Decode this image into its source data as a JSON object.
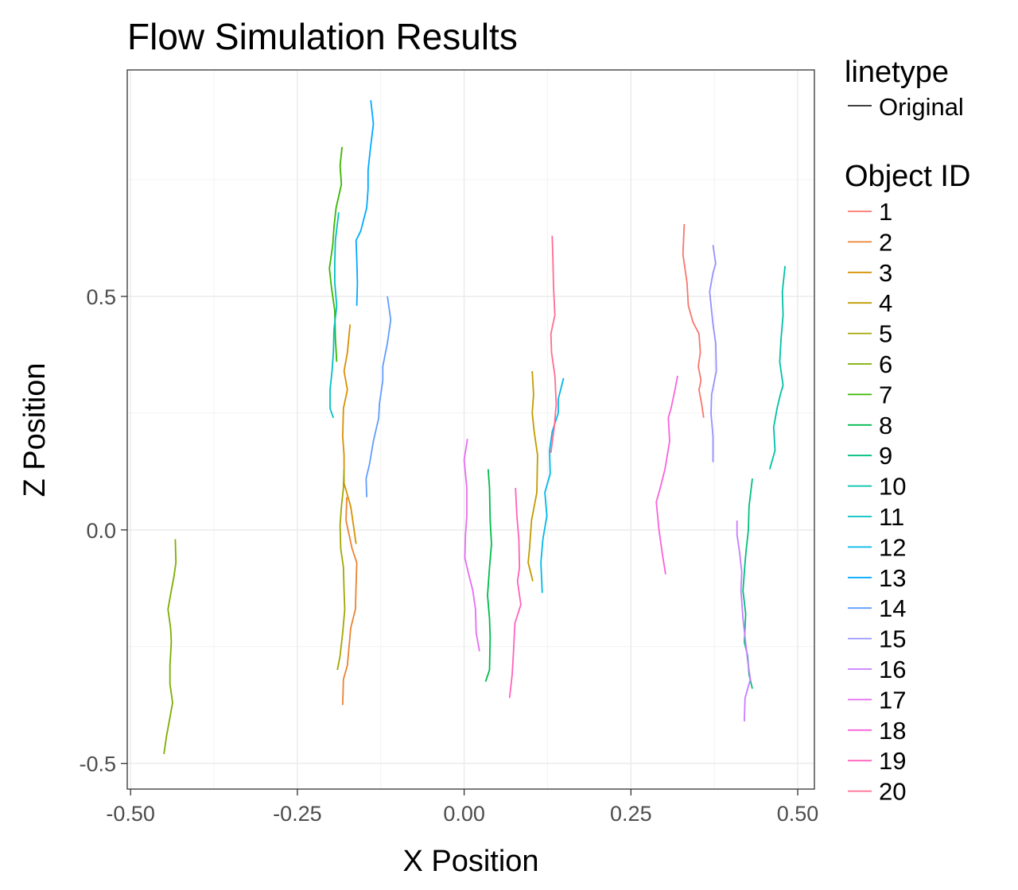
{
  "chart_data": {
    "type": "line",
    "title": "Flow Simulation Results",
    "xlabel": "X Position",
    "ylabel": "Z Position",
    "xlim": [
      -0.505,
      0.525
    ],
    "ylim": [
      -0.555,
      0.985
    ],
    "x_ticks": [
      -0.5,
      -0.25,
      0.0,
      0.25,
      0.5
    ],
    "x_tick_labels": [
      "-0.50",
      "-0.25",
      "0.00",
      "0.25",
      "0.50"
    ],
    "y_ticks": [
      -0.5,
      0.0,
      0.5
    ],
    "y_tick_labels": [
      "-0.5",
      "0.0",
      "0.5"
    ],
    "grid": true,
    "legend": {
      "placement": "right",
      "linetype_title": "linetype",
      "linetype_entries": [
        "Original"
      ],
      "color_title": "Object ID"
    },
    "series": [
      {
        "name": "1",
        "color": "#F8766D",
        "points": [
          [
            0.33,
            0.655
          ],
          [
            0.328,
            0.59
          ],
          [
            0.334,
            0.53
          ],
          [
            0.336,
            0.48
          ],
          [
            0.343,
            0.445
          ],
          [
            0.352,
            0.42
          ],
          [
            0.354,
            0.38
          ],
          [
            0.351,
            0.35
          ],
          [
            0.355,
            0.32
          ],
          [
            0.352,
            0.3
          ],
          [
            0.356,
            0.27
          ],
          [
            0.359,
            0.24
          ]
        ]
      },
      {
        "name": "2",
        "color": "#EA8331",
        "points": [
          [
            -0.182,
            -0.375
          ],
          [
            -0.181,
            -0.32
          ],
          [
            -0.175,
            -0.29
          ],
          [
            -0.17,
            -0.21
          ],
          [
            -0.163,
            -0.17
          ],
          [
            -0.162,
            -0.12
          ],
          [
            -0.161,
            -0.07
          ],
          [
            -0.168,
            -0.04
          ],
          [
            -0.177,
            0.02
          ],
          [
            -0.176,
            0.07
          ]
        ]
      },
      {
        "name": "3",
        "color": "#D89000",
        "points": [
          [
            -0.162,
            -0.03
          ],
          [
            -0.166,
            0.01
          ],
          [
            -0.17,
            0.05
          ],
          [
            -0.18,
            0.1
          ],
          [
            -0.18,
            0.16
          ],
          [
            -0.182,
            0.2
          ],
          [
            -0.181,
            0.26
          ],
          [
            -0.175,
            0.3
          ],
          [
            -0.18,
            0.34
          ],
          [
            -0.175,
            0.38
          ],
          [
            -0.171,
            0.44
          ]
        ]
      },
      {
        "name": "4",
        "color": "#C09B00",
        "points": [
          [
            0.103,
            -0.11
          ],
          [
            0.096,
            -0.07
          ],
          [
            0.098,
            -0.04
          ],
          [
            0.101,
            0.02
          ],
          [
            0.109,
            0.08
          ],
          [
            0.11,
            0.16
          ],
          [
            0.105,
            0.21
          ],
          [
            0.102,
            0.25
          ],
          [
            0.104,
            0.29
          ],
          [
            0.102,
            0.34
          ]
        ]
      },
      {
        "name": "5",
        "color": "#A3A500",
        "points": [
          [
            -0.19,
            -0.3
          ],
          [
            -0.186,
            -0.27
          ],
          [
            -0.182,
            -0.22
          ],
          [
            -0.179,
            -0.17
          ],
          [
            -0.18,
            -0.13
          ],
          [
            -0.181,
            -0.08
          ],
          [
            -0.185,
            -0.04
          ],
          [
            -0.186,
            0.01
          ],
          [
            -0.184,
            0.05
          ],
          [
            -0.181,
            0.09
          ],
          [
            -0.18,
            0.13
          ]
        ]
      },
      {
        "name": "6",
        "color": "#7CAE00",
        "points": [
          [
            -0.45,
            -0.48
          ],
          [
            -0.446,
            -0.44
          ],
          [
            -0.442,
            -0.41
          ],
          [
            -0.437,
            -0.37
          ],
          [
            -0.441,
            -0.33
          ],
          [
            -0.441,
            -0.29
          ],
          [
            -0.439,
            -0.24
          ],
          [
            -0.44,
            -0.21
          ],
          [
            -0.444,
            -0.17
          ],
          [
            -0.439,
            -0.13
          ],
          [
            -0.435,
            -0.1
          ],
          [
            -0.432,
            -0.07
          ],
          [
            -0.433,
            -0.02
          ]
        ]
      },
      {
        "name": "7",
        "color": "#39B600",
        "points": [
          [
            -0.191,
            0.36
          ],
          [
            -0.193,
            0.41
          ],
          [
            -0.194,
            0.47
          ],
          [
            -0.199,
            0.52
          ],
          [
            -0.202,
            0.56
          ],
          [
            -0.197,
            0.61
          ],
          [
            -0.195,
            0.65
          ],
          [
            -0.192,
            0.69
          ],
          [
            -0.184,
            0.74
          ],
          [
            -0.186,
            0.78
          ],
          [
            -0.183,
            0.82
          ]
        ]
      },
      {
        "name": "8",
        "color": "#00BB4E",
        "points": [
          [
            0.032,
            -0.325
          ],
          [
            0.038,
            -0.3
          ],
          [
            0.039,
            -0.23
          ],
          [
            0.038,
            -0.19
          ],
          [
            0.035,
            -0.14
          ],
          [
            0.038,
            -0.08
          ],
          [
            0.041,
            -0.03
          ],
          [
            0.039,
            0.02
          ],
          [
            0.038,
            0.09
          ],
          [
            0.036,
            0.13
          ]
        ]
      },
      {
        "name": "9",
        "color": "#00BF7D",
        "points": [
          [
            0.432,
            -0.34
          ],
          [
            0.427,
            -0.31
          ],
          [
            0.425,
            -0.27
          ],
          [
            0.42,
            -0.24
          ],
          [
            0.422,
            -0.18
          ],
          [
            0.418,
            -0.13
          ],
          [
            0.421,
            -0.07
          ],
          [
            0.423,
            -0.04
          ],
          [
            0.426,
            0.0
          ],
          [
            0.427,
            0.05
          ],
          [
            0.432,
            0.11
          ]
        ]
      },
      {
        "name": "10",
        "color": "#00C1A7",
        "points": [
          [
            0.458,
            0.13
          ],
          [
            0.466,
            0.17
          ],
          [
            0.464,
            0.22
          ],
          [
            0.469,
            0.26
          ],
          [
            0.474,
            0.29
          ],
          [
            0.478,
            0.31
          ],
          [
            0.473,
            0.36
          ],
          [
            0.475,
            0.41
          ],
          [
            0.478,
            0.46
          ],
          [
            0.477,
            0.51
          ],
          [
            0.481,
            0.565
          ]
        ]
      },
      {
        "name": "11",
        "color": "#00BFC4",
        "points": [
          [
            -0.196,
            0.24
          ],
          [
            -0.201,
            0.26
          ],
          [
            -0.201,
            0.3
          ],
          [
            -0.198,
            0.34
          ],
          [
            -0.196,
            0.38
          ],
          [
            -0.195,
            0.43
          ],
          [
            -0.191,
            0.48
          ],
          [
            -0.194,
            0.53
          ],
          [
            -0.194,
            0.57
          ],
          [
            -0.193,
            0.62
          ],
          [
            -0.188,
            0.68
          ]
        ]
      },
      {
        "name": "12",
        "color": "#00B8E7",
        "points": [
          [
            0.117,
            -0.135
          ],
          [
            0.115,
            -0.07
          ],
          [
            0.118,
            -0.02
          ],
          [
            0.124,
            0.03
          ],
          [
            0.121,
            0.08
          ],
          [
            0.129,
            0.12
          ],
          [
            0.128,
            0.17
          ],
          [
            0.132,
            0.21
          ],
          [
            0.141,
            0.25
          ],
          [
            0.141,
            0.28
          ],
          [
            0.149,
            0.325
          ]
        ]
      },
      {
        "name": "13",
        "color": "#00A9FF",
        "points": [
          [
            -0.161,
            0.48
          ],
          [
            -0.16,
            0.53
          ],
          [
            -0.161,
            0.58
          ],
          [
            -0.162,
            0.62
          ],
          [
            -0.155,
            0.64
          ],
          [
            -0.146,
            0.69
          ],
          [
            -0.144,
            0.73
          ],
          [
            -0.144,
            0.77
          ],
          [
            -0.141,
            0.81
          ],
          [
            -0.136,
            0.87
          ],
          [
            -0.14,
            0.92
          ]
        ]
      },
      {
        "name": "14",
        "color": "#619CFF",
        "points": [
          [
            -0.146,
            0.07
          ],
          [
            -0.147,
            0.11
          ],
          [
            -0.142,
            0.14
          ],
          [
            -0.136,
            0.19
          ],
          [
            -0.128,
            0.24
          ],
          [
            -0.127,
            0.27
          ],
          [
            -0.122,
            0.32
          ],
          [
            -0.122,
            0.35
          ],
          [
            -0.115,
            0.4
          ],
          [
            -0.11,
            0.45
          ],
          [
            -0.115,
            0.5
          ]
        ]
      },
      {
        "name": "15",
        "color": "#9590FF",
        "points": [
          [
            0.373,
            0.145
          ],
          [
            0.373,
            0.2
          ],
          [
            0.37,
            0.25
          ],
          [
            0.371,
            0.29
          ],
          [
            0.378,
            0.34
          ],
          [
            0.377,
            0.4
          ],
          [
            0.373,
            0.44
          ],
          [
            0.368,
            0.51
          ],
          [
            0.373,
            0.55
          ],
          [
            0.377,
            0.57
          ],
          [
            0.373,
            0.61
          ]
        ]
      },
      {
        "name": "16",
        "color": "#C77CFF",
        "points": [
          [
            0.42,
            -0.41
          ],
          [
            0.421,
            -0.36
          ],
          [
            0.429,
            -0.32
          ],
          [
            0.425,
            -0.28
          ],
          [
            0.421,
            -0.23
          ],
          [
            0.418,
            -0.19
          ],
          [
            0.415,
            -0.13
          ],
          [
            0.416,
            -0.09
          ],
          [
            0.413,
            -0.05
          ],
          [
            0.409,
            -0.01
          ],
          [
            0.409,
            0.02
          ]
        ]
      },
      {
        "name": "17",
        "color": "#E76BF3",
        "points": [
          [
            0.023,
            -0.26
          ],
          [
            0.018,
            -0.22
          ],
          [
            0.017,
            -0.17
          ],
          [
            0.013,
            -0.13
          ],
          [
            0.006,
            -0.09
          ],
          [
            0.001,
            -0.06
          ],
          [
            0.002,
            -0.01
          ],
          [
            0.004,
            0.03
          ],
          [
            0.004,
            0.09
          ],
          [
            0.0,
            0.15
          ],
          [
            0.005,
            0.195
          ]
        ]
      },
      {
        "name": "18",
        "color": "#FA62DB",
        "points": [
          [
            0.302,
            -0.095
          ],
          [
            0.297,
            -0.05
          ],
          [
            0.292,
            0.0
          ],
          [
            0.288,
            0.06
          ],
          [
            0.294,
            0.09
          ],
          [
            0.301,
            0.13
          ],
          [
            0.308,
            0.19
          ],
          [
            0.306,
            0.24
          ],
          [
            0.31,
            0.26
          ],
          [
            0.316,
            0.3
          ],
          [
            0.32,
            0.33
          ]
        ]
      },
      {
        "name": "19",
        "color": "#FF62BC",
        "points": [
          [
            0.068,
            -0.36
          ],
          [
            0.072,
            -0.31
          ],
          [
            0.074,
            -0.26
          ],
          [
            0.076,
            -0.2
          ],
          [
            0.085,
            -0.16
          ],
          [
            0.08,
            -0.11
          ],
          [
            0.083,
            -0.08
          ],
          [
            0.082,
            -0.02
          ],
          [
            0.079,
            0.03
          ],
          [
            0.077,
            0.09
          ]
        ]
      },
      {
        "name": "20",
        "color": "#FF6C91",
        "points": [
          [
            0.13,
            0.165
          ],
          [
            0.135,
            0.22
          ],
          [
            0.138,
            0.27
          ],
          [
            0.136,
            0.33
          ],
          [
            0.131,
            0.38
          ],
          [
            0.13,
            0.42
          ],
          [
            0.136,
            0.46
          ],
          [
            0.134,
            0.52
          ],
          [
            0.133,
            0.58
          ],
          [
            0.132,
            0.63
          ]
        ]
      }
    ]
  }
}
